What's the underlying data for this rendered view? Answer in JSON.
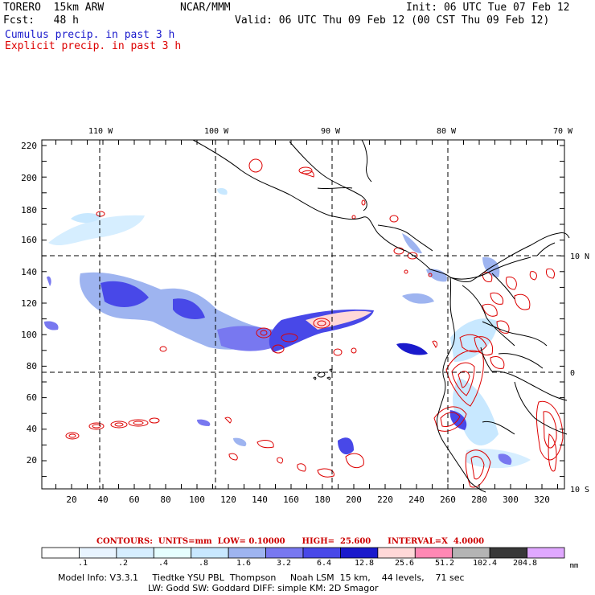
{
  "header": {
    "model": "TORERO  15km ARW",
    "center": "NCAR/MMM",
    "init": "Init: 06 UTC Tue 07 Feb 12",
    "fcst": "Fcst:   48 h",
    "valid": "Valid: 06 UTC Thu 09 Feb 12 (00 CST Thu 09 Feb 12)",
    "field1": "Cumulus precip. in past 3 h",
    "field2": "Explicit precip. in past 3 h"
  },
  "colors": {
    "field1": "#1a1acc",
    "field2": "#dd0000",
    "coast": "#000000",
    "grid": "#000000"
  },
  "map": {
    "top_labels": [
      "110 W",
      "100 W",
      "90 W",
      "80 W",
      "70 W"
    ],
    "left_ticks": [
      "220",
      "200",
      "180",
      "160",
      "140",
      "120",
      "100",
      "80",
      "60",
      "40",
      "20"
    ],
    "bottom_ticks": [
      "20",
      "40",
      "60",
      "80",
      "100",
      "120",
      "140",
      "160",
      "180",
      "200",
      "220",
      "240",
      "260",
      "280",
      "300",
      "320"
    ],
    "right_labels": [
      "10 N",
      "0",
      "10 S"
    ]
  },
  "contours_text": "CONTOURS:  UNITS=mm  LOW= 0.10000      HIGH=  25.600      INTERVAL=X  4.0000",
  "colorbar": {
    "labels": [
      ".1",
      ".2",
      ".4",
      ".8",
      "1.6",
      "3.2",
      "6.4",
      "12.8",
      "25.6",
      "51.2",
      "102.4",
      "204.8"
    ],
    "units": "mm",
    "colors": [
      "#ffffff",
      "#e8f4ff",
      "#d6eeff",
      "#e6ffff",
      "#c8e8ff",
      "#9eb4f0",
      "#7878f0",
      "#4848e8",
      "#1a1acc",
      "#ffd8d8",
      "#ff88b4",
      "#b4b4b4",
      "#383838",
      "#e0a8ff"
    ]
  },
  "footer": {
    "line1": "Model Info: V3.3.1     Tiedtke YSU PBL  Thompson     Noah LSM  15 km,    44 levels,    71 sec",
    "line2": "LW: Godd SW: Goddard DIFF: simple KM: 2D Smagor"
  }
}
